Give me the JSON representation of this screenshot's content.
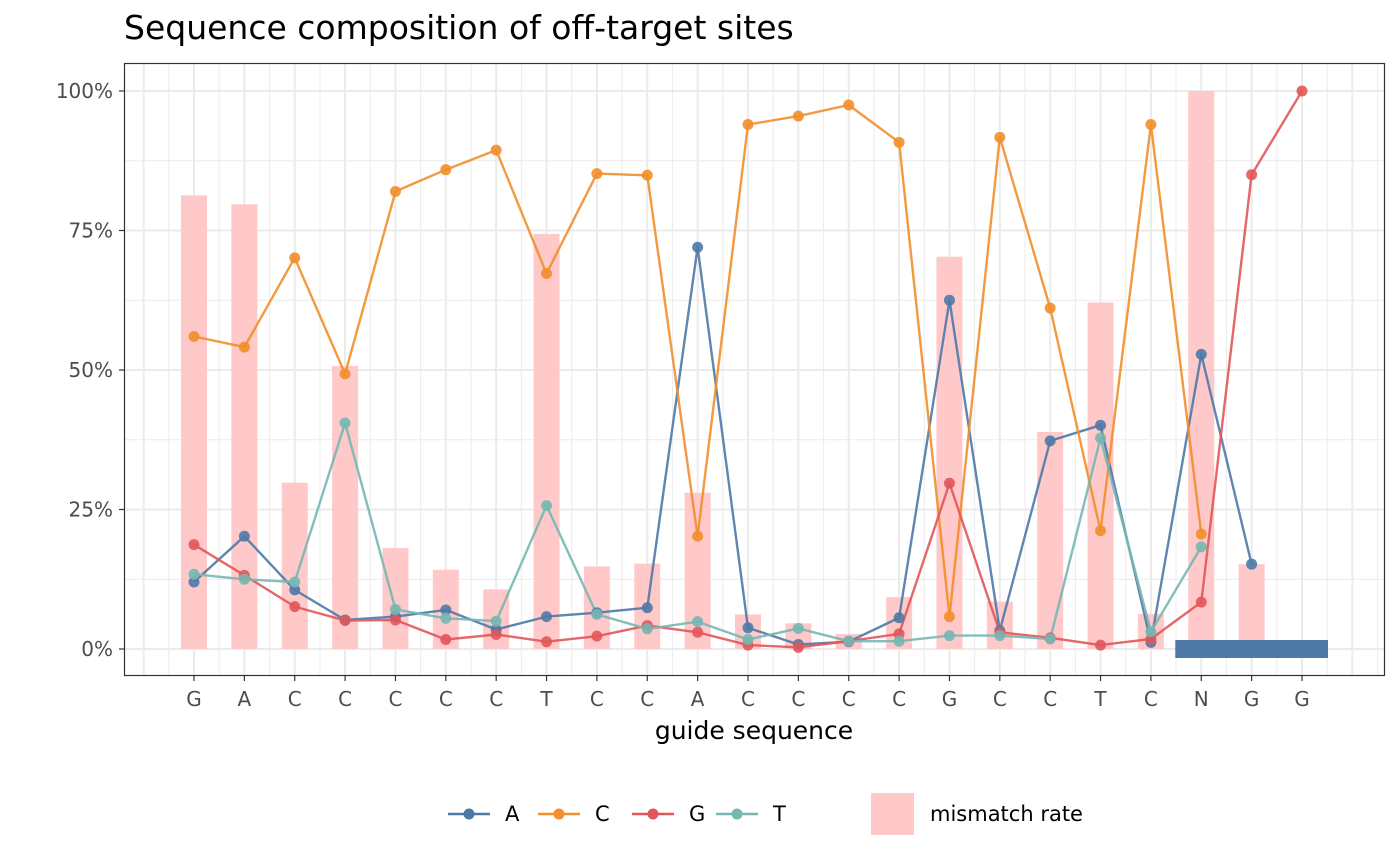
{
  "chart_data": {
    "type": "line",
    "title": "Sequence composition of off-target sites",
    "xlabel": "guide sequence",
    "ylabel": "",
    "ylim": [
      -0.03,
      1.05
    ],
    "y_ticks": [
      0,
      0.25,
      0.5,
      0.75,
      1.0
    ],
    "y_tick_labels": [
      "0%",
      "25%",
      "50%",
      "75%",
      "100%"
    ],
    "categories": [
      "G",
      "A",
      "C",
      "C",
      "C",
      "C",
      "C",
      "T",
      "C",
      "C",
      "A",
      "C",
      "C",
      "C",
      "C",
      "G",
      "C",
      "C",
      "T",
      "C",
      "N",
      "G",
      "G"
    ],
    "series": [
      {
        "name": "A",
        "color": "#4E79A7",
        "values": [
          0.12,
          0.202,
          0.106,
          0.052,
          0.058,
          0.07,
          0.035,
          0.058,
          0.065,
          0.074,
          0.72,
          0.038,
          0.008,
          0.013,
          0.056,
          0.625,
          0.033,
          0.373,
          0.401,
          0.012,
          0.528,
          0.152,
          null
        ]
      },
      {
        "name": "C",
        "color": "#F28E2B",
        "values": [
          0.56,
          0.541,
          0.701,
          0.493,
          0.82,
          0.859,
          0.894,
          0.673,
          0.852,
          0.849,
          0.202,
          0.94,
          0.955,
          0.975,
          0.908,
          0.058,
          0.917,
          0.611,
          0.212,
          0.94,
          0.206,
          null,
          null
        ]
      },
      {
        "name": "G",
        "color": "#E15759",
        "values": [
          0.187,
          0.132,
          0.076,
          0.051,
          0.052,
          0.017,
          0.026,
          0.013,
          0.023,
          0.042,
          0.03,
          0.007,
          0.003,
          0.014,
          0.027,
          0.297,
          0.03,
          0.02,
          0.007,
          0.018,
          0.084,
          0.85,
          1.0
        ]
      },
      {
        "name": "T",
        "color": "#76B7B2",
        "values": [
          0.134,
          0.125,
          0.12,
          0.405,
          0.071,
          0.055,
          0.05,
          0.257,
          0.062,
          0.036,
          0.049,
          0.017,
          0.037,
          0.014,
          0.014,
          0.024,
          0.024,
          0.018,
          0.378,
          0.031,
          0.183,
          null,
          null
        ]
      }
    ],
    "bars": {
      "name": "mismatch rate",
      "color": "#FFC9C9",
      "values": [
        0.813,
        0.797,
        0.298,
        0.507,
        0.181,
        0.142,
        0.107,
        0.744,
        0.148,
        0.153,
        0.28,
        0.062,
        0.046,
        0.027,
        0.093,
        0.703,
        0.085,
        0.389,
        0.621,
        0.063,
        1.0,
        0.152,
        null
      ]
    },
    "pam_marker": {
      "from_index": 20,
      "to_index": 22,
      "color": "#4E79A7"
    },
    "grid": true,
    "legend_position": "bottom"
  }
}
